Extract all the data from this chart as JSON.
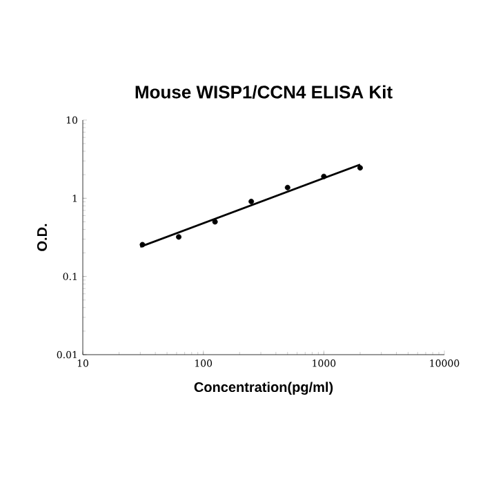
{
  "chart_data": {
    "type": "scatter",
    "title": "Mouse WISP1/CCN4 ELISA Kit",
    "xlabel": "Concentration(pg/ml)",
    "ylabel": "O.D.",
    "log": "xy",
    "xlim": [
      10,
      10000
    ],
    "ylim": [
      0.01,
      10
    ],
    "xticks": [
      10,
      100,
      1000,
      10000
    ],
    "yticks": [
      0.01,
      0.1,
      1,
      10
    ],
    "grid": false,
    "marker": "circle",
    "series": [
      {
        "color": "#000000",
        "x": [
          31.25,
          62.5,
          125,
          250,
          500,
          1000,
          2000
        ],
        "values": [
          0.255,
          0.32,
          0.5,
          0.91,
          1.37,
          1.9,
          2.45
        ]
      },
      {
        "type": "line",
        "color": "#000000",
        "line_style": "solid",
        "marker": "none",
        "x": [
          30,
          2000
        ],
        "values": [
          0.24,
          2.7
        ]
      }
    ]
  }
}
